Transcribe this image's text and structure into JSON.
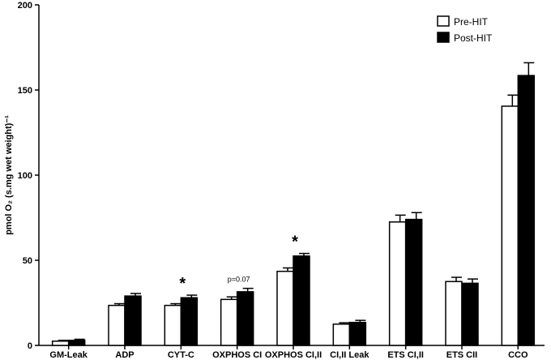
{
  "chart_data": {
    "type": "bar",
    "title": "",
    "xlabel": "",
    "ylabel": "pmol O₂ (s.mg wet weight)⁻¹",
    "ylim": [
      0,
      200
    ],
    "yticks": [
      0,
      50,
      100,
      150,
      200
    ],
    "grid": false,
    "legend_position": "top-right",
    "categories": [
      "GM-Leak",
      "ADP",
      "CYT-C",
      "OXPHOS CI",
      "OXPHOS CI,II",
      "CI,II Leak",
      "ETS CI,II",
      "ETS CII",
      "CCO"
    ],
    "series": [
      {
        "name": "Pre-HIT",
        "fill": "#ffffff",
        "values": [
          2.5,
          23.5,
          23.5,
          27,
          43.5,
          12.5,
          72.5,
          37.5,
          140.5
        ],
        "errors": [
          0.5,
          1.0,
          1.0,
          1.5,
          2.0,
          0.8,
          4.0,
          2.5,
          6.5
        ]
      },
      {
        "name": "Post-HIT",
        "fill": "#000000",
        "values": [
          3,
          29,
          28,
          31.5,
          52.5,
          13.5,
          74,
          36.5,
          158.5
        ],
        "errors": [
          0.6,
          1.5,
          1.5,
          2.0,
          1.5,
          1.2,
          4.0,
          2.5,
          7.5
        ]
      }
    ],
    "annotations": [
      {
        "category": "CYT-C",
        "text": "*",
        "style": "star"
      },
      {
        "category": "OXPHOS CI",
        "text": "p=0.07",
        "style": "small"
      },
      {
        "category": "OXPHOS CI,II",
        "text": "*",
        "style": "star"
      }
    ]
  }
}
